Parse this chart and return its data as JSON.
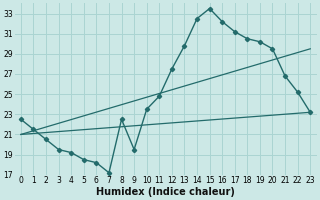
{
  "xlabel": "Humidex (Indice chaleur)",
  "bg_color": "#cce8e6",
  "grid_color": "#aad4d2",
  "line_color": "#236b6b",
  "series": [
    [
      0,
      22.5
    ],
    [
      1,
      21.5
    ],
    [
      2,
      20.5
    ],
    [
      3,
      19.5
    ],
    [
      4,
      19.2
    ],
    [
      5,
      18.5
    ],
    [
      6,
      18.2
    ],
    [
      7,
      17.2
    ],
    [
      8,
      22.5
    ],
    [
      9,
      19.5
    ],
    [
      10,
      23.5
    ],
    [
      11,
      24.8
    ],
    [
      12,
      27.5
    ],
    [
      13,
      29.8
    ],
    [
      14,
      32.5
    ],
    [
      15,
      33.5
    ],
    [
      16,
      32.2
    ],
    [
      17,
      31.2
    ],
    [
      18,
      30.5
    ],
    [
      19,
      30.2
    ],
    [
      20,
      29.5
    ],
    [
      21,
      26.8
    ],
    [
      22,
      25.2
    ],
    [
      23,
      23.2
    ]
  ],
  "line2_x": [
    0,
    23
  ],
  "line2_y": [
    21.0,
    29.5
  ],
  "line3_x": [
    0,
    23
  ],
  "line3_y": [
    21.0,
    23.2
  ],
  "xlim": [
    -0.5,
    23.5
  ],
  "ylim": [
    17,
    34
  ],
  "yticks": [
    17,
    19,
    21,
    23,
    25,
    27,
    29,
    31,
    33
  ],
  "xticks": [
    0,
    1,
    2,
    3,
    4,
    5,
    6,
    7,
    8,
    9,
    10,
    11,
    12,
    13,
    14,
    15,
    16,
    17,
    18,
    19,
    20,
    21,
    22,
    23
  ],
  "xlabel_fontsize": 7,
  "tick_fontsize": 5.5
}
